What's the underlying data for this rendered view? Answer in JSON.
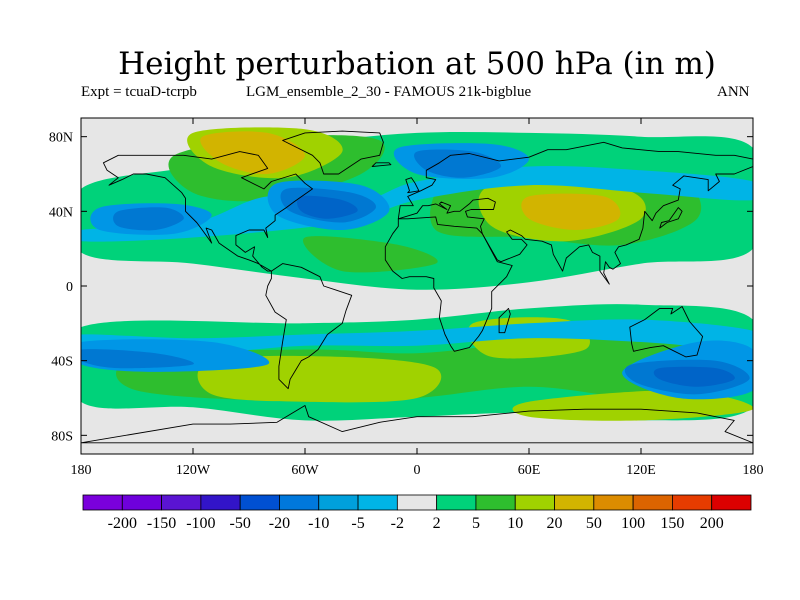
{
  "title": "Height perturbation at 500 hPa (in m)",
  "experiment": "Expt = tcuaD-tcrpb",
  "run_name": "LGM_ensemble_2_30 - FAMOUS 21k-bigblue",
  "season": "ANN",
  "map": {
    "projection": "cylindrical-equidistant",
    "lon_range": [
      -180,
      180
    ],
    "lat_range": [
      -90,
      90
    ],
    "y_ticks": [
      {
        "lat": 80,
        "label": "80N"
      },
      {
        "lat": 40,
        "label": "40N"
      },
      {
        "lat": 0,
        "label": "0"
      },
      {
        "lat": -40,
        "label": "40S"
      },
      {
        "lat": -80,
        "label": "80S"
      }
    ],
    "x_ticks": [
      {
        "lon": -180,
        "label": "180"
      },
      {
        "lon": -120,
        "label": "120W"
      },
      {
        "lon": -60,
        "label": "60W"
      },
      {
        "lon": 0,
        "label": "0"
      },
      {
        "lon": 60,
        "label": "60E"
      },
      {
        "lon": 120,
        "label": "120E"
      },
      {
        "lon": 180,
        "label": "180"
      }
    ],
    "background_color": "#e6e6e6",
    "field_regions": [
      {
        "level": "5",
        "color": "#00d27a",
        "polygons": [
          [
            [
              -180,
              -22
            ],
            [
              -60,
              -20
            ],
            [
              0,
              -18
            ],
            [
              60,
              -12
            ],
            [
              120,
              -10
            ],
            [
              180,
              -18
            ],
            [
              180,
              -65
            ],
            [
              120,
              -72
            ],
            [
              60,
              -68
            ],
            [
              0,
              -70
            ],
            [
              -60,
              -72
            ],
            [
              -120,
              -65
            ],
            [
              -180,
              -62
            ]
          ],
          [
            [
              -180,
              52
            ],
            [
              -120,
              64
            ],
            [
              -60,
              76
            ],
            [
              0,
              82
            ],
            [
              60,
              82
            ],
            [
              120,
              80
            ],
            [
              180,
              74
            ],
            [
              180,
              20
            ],
            [
              120,
              12
            ],
            [
              60,
              2
            ],
            [
              0,
              -2
            ],
            [
              -60,
              4
            ],
            [
              -120,
              12
            ],
            [
              -180,
              18
            ]
          ]
        ]
      },
      {
        "level": "10",
        "color": "#2ebe2e",
        "polygons": [
          [
            [
              -150,
              -38
            ],
            [
              -60,
              -34
            ],
            [
              0,
              -36
            ],
            [
              60,
              -30
            ],
            [
              120,
              -28
            ],
            [
              180,
              -34
            ],
            [
              180,
              -56
            ],
            [
              120,
              -60
            ],
            [
              60,
              -54
            ],
            [
              0,
              -60
            ],
            [
              -60,
              -62
            ],
            [
              -150,
              -56
            ]
          ],
          [
            [
              -130,
              70
            ],
            [
              -70,
              80
            ],
            [
              -20,
              78
            ],
            [
              -30,
              60
            ],
            [
              -80,
              46
            ],
            [
              -120,
              50
            ]
          ],
          [
            [
              20,
              60
            ],
            [
              80,
              58
            ],
            [
              140,
              56
            ],
            [
              150,
              36
            ],
            [
              110,
              22
            ],
            [
              60,
              26
            ],
            [
              10,
              30
            ]
          ],
          [
            [
              -60,
              26
            ],
            [
              -10,
              22
            ],
            [
              10,
              12
            ],
            [
              -40,
              8
            ]
          ]
        ]
      },
      {
        "level": "20",
        "color": "#a0d200",
        "polygons": [
          [
            [
              -110,
              -40
            ],
            [
              -40,
              -38
            ],
            [
              10,
              -44
            ],
            [
              0,
              -60
            ],
            [
              -60,
              -62
            ],
            [
              -110,
              -58
            ]
          ],
          [
            [
              30,
              -20
            ],
            [
              80,
              -18
            ],
            [
              90,
              -34
            ],
            [
              40,
              -38
            ]
          ],
          [
            [
              60,
              -62
            ],
            [
              140,
              -56
            ],
            [
              180,
              -66
            ],
            [
              120,
              -72
            ],
            [
              60,
              -70
            ]
          ],
          [
            [
              -120,
              82
            ],
            [
              -60,
              84
            ],
            [
              -40,
              72
            ],
            [
              -70,
              58
            ],
            [
              -110,
              64
            ]
          ],
          [
            [
              40,
              54
            ],
            [
              110,
              52
            ],
            [
              120,
              36
            ],
            [
              80,
              24
            ],
            [
              40,
              32
            ]
          ]
        ]
      },
      {
        "level": "50",
        "color": "#d2b400",
        "polygons": [
          [
            [
              -115,
              80
            ],
            [
              -80,
              82
            ],
            [
              -60,
              70
            ],
            [
              -80,
              60
            ],
            [
              -105,
              66
            ]
          ],
          [
            [
              60,
              48
            ],
            [
              100,
              48
            ],
            [
              108,
              36
            ],
            [
              85,
              30
            ],
            [
              60,
              36
            ]
          ]
        ]
      },
      {
        "level": "-2",
        "color": "#00b4e6",
        "polygons": [
          [
            [
              -180,
              -26
            ],
            [
              -120,
              -28
            ],
            [
              -60,
              -26
            ],
            [
              0,
              -24
            ],
            [
              60,
              -20
            ],
            [
              120,
              -18
            ],
            [
              180,
              -24
            ],
            [
              180,
              -34
            ],
            [
              120,
              -30
            ],
            [
              60,
              -28
            ],
            [
              0,
              -32
            ],
            [
              -60,
              -32
            ],
            [
              -120,
              -36
            ],
            [
              -180,
              -32
            ]
          ],
          [
            [
              -180,
              30
            ],
            [
              -120,
              34
            ],
            [
              -80,
              48
            ],
            [
              -30,
              46
            ],
            [
              0,
              56
            ],
            [
              60,
              64
            ],
            [
              120,
              62
            ],
            [
              180,
              56
            ],
            [
              180,
              46
            ],
            [
              120,
              50
            ],
            [
              60,
              54
            ],
            [
              0,
              46
            ],
            [
              -40,
              34
            ],
            [
              -120,
              26
            ],
            [
              -180,
              24
            ]
          ]
        ]
      },
      {
        "level": "-5",
        "color": "#0096e6",
        "polygons": [
          [
            [
              -170,
              42
            ],
            [
              -130,
              44
            ],
            [
              -110,
              38
            ],
            [
              -130,
              28
            ],
            [
              -170,
              30
            ]
          ],
          [
            [
              -75,
              55
            ],
            [
              -30,
              54
            ],
            [
              -15,
              40
            ],
            [
              -40,
              30
            ],
            [
              -75,
              38
            ]
          ],
          [
            [
              -10,
              74
            ],
            [
              40,
              76
            ],
            [
              60,
              68
            ],
            [
              40,
              58
            ],
            [
              0,
              60
            ]
          ],
          [
            [
              150,
              -30
            ],
            [
              180,
              -34
            ],
            [
              180,
              -56
            ],
            [
              140,
              -60
            ],
            [
              110,
              -46
            ]
          ],
          [
            [
              -180,
              -30
            ],
            [
              -110,
              -30
            ],
            [
              -80,
              -42
            ],
            [
              -140,
              -46
            ],
            [
              -180,
              -42
            ]
          ]
        ]
      },
      {
        "level": "-10",
        "color": "#0078d2",
        "polygons": [
          [
            [
              -160,
              40
            ],
            [
              -135,
              42
            ],
            [
              -125,
              36
            ],
            [
              -140,
              30
            ],
            [
              -160,
              32
            ]
          ],
          [
            [
              -70,
              52
            ],
            [
              -35,
              50
            ],
            [
              -22,
              42
            ],
            [
              -40,
              34
            ],
            [
              -68,
              40
            ]
          ],
          [
            [
              0,
              72
            ],
            [
              30,
              72
            ],
            [
              45,
              64
            ],
            [
              25,
              58
            ],
            [
              5,
              62
            ]
          ],
          [
            [
              115,
              -42
            ],
            [
              160,
              -40
            ],
            [
              178,
              -50
            ],
            [
              150,
              -58
            ],
            [
              118,
              -52
            ]
          ],
          [
            [
              -180,
              -34
            ],
            [
              -140,
              -36
            ],
            [
              -120,
              -42
            ],
            [
              -160,
              -44
            ],
            [
              -180,
              -40
            ]
          ]
        ]
      },
      {
        "level": "-20",
        "color": "#0064c8",
        "polygons": [
          [
            [
              -62,
              48
            ],
            [
              -40,
              46
            ],
            [
              -32,
              40
            ],
            [
              -48,
              36
            ],
            [
              -62,
              40
            ]
          ],
          [
            [
              130,
              -44
            ],
            [
              160,
              -44
            ],
            [
              170,
              -50
            ],
            [
              150,
              -54
            ],
            [
              130,
              -50
            ]
          ]
        ]
      }
    ],
    "coastline_color": "#000000"
  },
  "colorbar": {
    "colors": [
      "#7a00dc",
      "#6e00dc",
      "#5a14d2",
      "#3214c8",
      "#0050d2",
      "#0078dc",
      "#00a0dc",
      "#00b4e6",
      "#e6e6e6",
      "#00d27a",
      "#2ebe2e",
      "#a0d200",
      "#d2b400",
      "#dc8c00",
      "#dc6400",
      "#e63c00",
      "#dc0000"
    ],
    "labels": [
      "-200",
      "-150",
      "-100",
      "-50",
      "-20",
      "-10",
      "-5",
      "-2",
      "2",
      "5",
      "10",
      "20",
      "50",
      "100",
      "150",
      "200"
    ]
  }
}
